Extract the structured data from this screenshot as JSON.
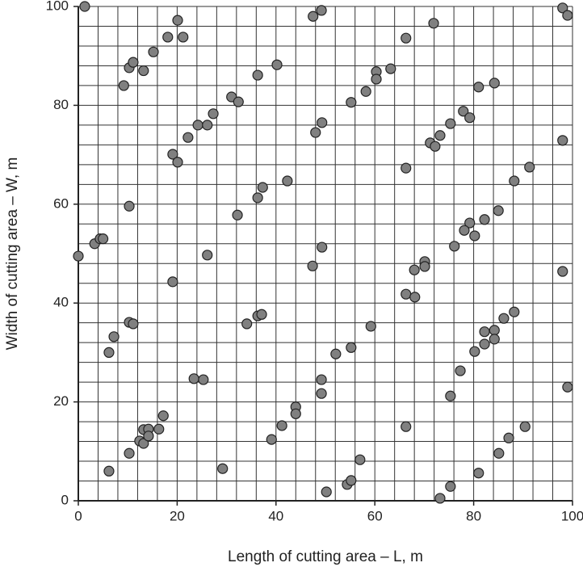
{
  "chart_data": {
    "type": "scatter",
    "x_label": "Length of cutting area – L, m",
    "y_label": "Width of cutting area – W, m",
    "xlim": [
      0,
      100
    ],
    "ylim": [
      0,
      100
    ],
    "xticks": [
      0,
      20,
      40,
      60,
      80,
      100
    ],
    "yticks": [
      0,
      20,
      40,
      60,
      80,
      100
    ],
    "grid_lines": [
      0,
      4,
      8,
      12,
      16,
      20,
      24,
      28,
      32,
      36,
      40,
      44,
      48,
      52,
      56,
      60,
      64,
      68,
      72,
      76,
      80,
      84,
      88,
      92,
      96,
      100
    ],
    "color": "#808080",
    "x": [
      1.3,
      0,
      3.3,
      4.4,
      5,
      6.2,
      6.2,
      7.2,
      10.3,
      9.2,
      10.3,
      11.1,
      13.2,
      15.2,
      18.1,
      21.2,
      20.1,
      19.1,
      20.1,
      22.2,
      24.2,
      26.1,
      27.3,
      31,
      32.4,
      36.3,
      40.2,
      10.3,
      11.1,
      19.1,
      26.1,
      32.2,
      36.3,
      37.3,
      42.3,
      34.1,
      36.3,
      37.1,
      23.4,
      25.3,
      29.2,
      10.3,
      12.4,
      13.2,
      13.2,
      14.2,
      14.2,
      16.3,
      17.2,
      39.1,
      41.2,
      44,
      44,
      47.5,
      49.2,
      48,
      49.3,
      55.2,
      58.2,
      60.3,
      60.3,
      63.2,
      66.3,
      71.9,
      66.3,
      47.4,
      49.3,
      66.3,
      68.1,
      68,
      70.1,
      70.1,
      59.2,
      52.1,
      55.2,
      49.2,
      49.2,
      50.2,
      54.4,
      55.2,
      57,
      66.3,
      71.2,
      72.2,
      73.2,
      75.3,
      77.9,
      79.2,
      81,
      84.2,
      91.3,
      88.2,
      85,
      82.2,
      79.2,
      78.1,
      80.2,
      76.1,
      98,
      98,
      98,
      99,
      88.2,
      86.1,
      84.2,
      82.2,
      84.2,
      82.2,
      80.2,
      77.3,
      75.3,
      99,
      90.4,
      87.1,
      85.1,
      81,
      75.3,
      73.2
    ],
    "values": [
      100,
      49.5,
      52,
      53,
      53,
      6,
      30,
      33.2,
      59.6,
      84,
      87.6,
      88.7,
      87,
      90.8,
      93.8,
      93.8,
      97.2,
      70.1,
      68.5,
      73.5,
      76,
      76,
      78.3,
      81.7,
      80.7,
      86.1,
      88.2,
      36.1,
      35.8,
      44.3,
      49.7,
      57.8,
      61.3,
      63.4,
      64.7,
      35.8,
      37.4,
      37.7,
      24.7,
      24.5,
      6.5,
      9.6,
      12.1,
      14.4,
      11.6,
      14.5,
      13.1,
      14.5,
      17.2,
      12.4,
      15.2,
      19,
      17.6,
      98,
      99.2,
      74.5,
      76.5,
      80.6,
      82.8,
      86.8,
      85.3,
      87.4,
      93.6,
      96.6,
      67.3,
      47.5,
      51.3,
      41.8,
      41.2,
      46.7,
      48.4,
      47.4,
      35.3,
      29.7,
      31,
      24.5,
      21.7,
      1.8,
      3.3,
      4.1,
      8.3,
      15,
      72.4,
      71.7,
      73.9,
      76.3,
      78.8,
      77.5,
      83.7,
      84.5,
      67.5,
      64.7,
      58.7,
      56.9,
      56.2,
      54.7,
      53.6,
      51.5,
      72.9,
      46.4,
      99.7,
      98.2,
      38.2,
      36.9,
      34.5,
      34.2,
      32.7,
      31.7,
      30.2,
      26.3,
      21.2,
      23,
      15,
      12.7,
      9.6,
      5.6,
      2.9,
      0.5
    ]
  }
}
